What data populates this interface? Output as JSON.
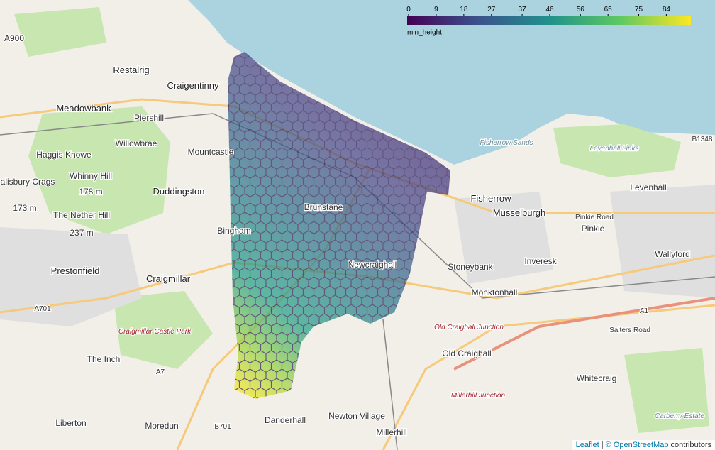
{
  "legend": {
    "title": "min_height",
    "lim": [
      0,
      92
    ],
    "ticks": [
      0,
      9,
      18,
      27,
      37,
      46,
      56,
      65,
      75,
      84
    ]
  },
  "places": [
    "A900",
    "Restalrig",
    "Craigentinny",
    "Meadowbank",
    "Piershill",
    "Willowbrae",
    "Mountcastle",
    "Haggis Knowe",
    "Whinny Hill",
    "178 m",
    "Salisbury Crags",
    "173 m",
    "Duddingston",
    "The Nether Hill",
    "237 m",
    "Bingham",
    "Prestonfield",
    "Craigmillar",
    "A701",
    "Craigmillar Castle Park",
    "The Inch",
    "A7",
    "Liberton",
    "Moredun",
    "B701",
    "Danderhall",
    "Newton Village",
    "Millerhill",
    "Fisherrow Sands",
    "Fisherrow",
    "Musselburgh",
    "Levenhall Links",
    "Levenhall",
    "B1348",
    "Pinkie Road",
    "Pinkie",
    "Wallyford",
    "Inveresk",
    "Stoneybank",
    "Monktonhall",
    "Old Craighall Junction",
    "Old Craighall",
    "Whitecraig",
    "A1",
    "Millerhill Junction",
    "Carberry Estate",
    "Salters Road",
    "Newcraighall",
    "Brunstane"
  ],
  "attribution": {
    "leaflet": "Leaflet",
    "sep": "|",
    "osm": "© OpenStreetMap",
    "rest": "contributors"
  }
}
